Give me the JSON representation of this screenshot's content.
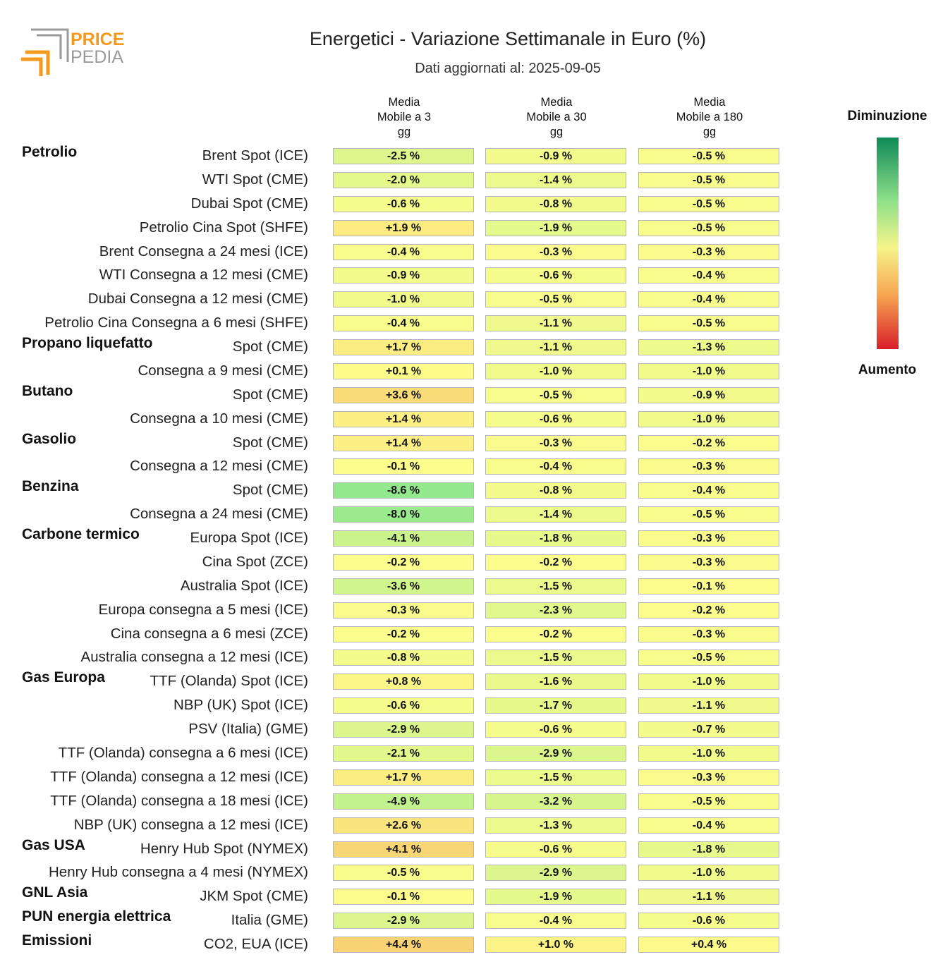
{
  "header": {
    "logo_text_top": "PRICE",
    "logo_text_bottom": "PEDIA",
    "title": "Energetici - Variazione Settimanale in Euro (%)",
    "subtitle": "Dati aggiornati al: 2025-09-05"
  },
  "columns": [
    "Media\nMobile a 3\ngg",
    "Media\nMobile a 30\ngg",
    "Media\nMobile a 180\ngg"
  ],
  "legend": {
    "top_label": "Diminuzione",
    "bottom_label": "Aumento"
  },
  "colors": {
    "strong_green": "#0f8a57",
    "green": "#8fe08a",
    "yellow": "#f5f58a",
    "orange": "#f7a752",
    "red": "#d81f2a"
  },
  "chart_data": {
    "type": "heatmap",
    "title": "Energetici - Variazione Settimanale in Euro (%)",
    "subtitle": "Dati aggiornati al: 2025-09-05",
    "columns": [
      "Media Mobile a 3 gg",
      "Media Mobile a 30 gg",
      "Media Mobile a 180 gg"
    ],
    "rows": [
      {
        "group": "Petrolio",
        "label": "Brent Spot (ICE)",
        "values": [
          -2.5,
          -0.9,
          -0.5
        ]
      },
      {
        "group": "",
        "label": "WTI Spot (CME)",
        "values": [
          -2.0,
          -1.4,
          -0.5
        ]
      },
      {
        "group": "",
        "label": "Dubai Spot (CME)",
        "values": [
          -0.6,
          -0.8,
          -0.5
        ]
      },
      {
        "group": "",
        "label": "Petrolio Cina Spot (SHFE)",
        "values": [
          1.9,
          -1.9,
          -0.5
        ]
      },
      {
        "group": "",
        "label": "Brent Consegna a 24 mesi (ICE)",
        "values": [
          -0.4,
          -0.3,
          -0.3
        ]
      },
      {
        "group": "",
        "label": "WTI Consegna a 12 mesi (CME)",
        "values": [
          -0.9,
          -0.6,
          -0.4
        ]
      },
      {
        "group": "",
        "label": "Dubai Consegna a 12 mesi (CME)",
        "values": [
          -1.0,
          -0.5,
          -0.4
        ]
      },
      {
        "group": "",
        "label": "Petrolio Cina Consegna a 6 mesi (SHFE)",
        "values": [
          -0.4,
          -1.1,
          -0.5
        ]
      },
      {
        "group": "Propano liquefatto",
        "label": "Spot (CME)",
        "values": [
          1.7,
          -1.1,
          -1.3
        ]
      },
      {
        "group": "",
        "label": "Consegna a 9 mesi (CME)",
        "values": [
          0.1,
          -1.0,
          -1.0
        ]
      },
      {
        "group": "Butano",
        "label": "Spot (CME)",
        "values": [
          3.6,
          -0.5,
          -0.9
        ]
      },
      {
        "group": "",
        "label": "Consegna a 10 mesi (CME)",
        "values": [
          1.4,
          -0.6,
          -1.0
        ]
      },
      {
        "group": "Gasolio",
        "label": "Spot (CME)",
        "values": [
          1.4,
          -0.3,
          -0.2
        ]
      },
      {
        "group": "",
        "label": "Consegna a 12 mesi (CME)",
        "values": [
          -0.1,
          -0.4,
          -0.3
        ]
      },
      {
        "group": "Benzina",
        "label": "Spot (CME)",
        "values": [
          -8.6,
          -0.8,
          -0.4
        ]
      },
      {
        "group": "",
        "label": "Consegna a 24 mesi (CME)",
        "values": [
          -8.0,
          -1.4,
          -0.5
        ]
      },
      {
        "group": "Carbone termico",
        "label": "Europa Spot (ICE)",
        "values": [
          -4.1,
          -1.8,
          -0.3
        ]
      },
      {
        "group": "",
        "label": "Cina Spot (ZCE)",
        "values": [
          -0.2,
          -0.2,
          -0.3
        ]
      },
      {
        "group": "",
        "label": "Australia Spot (ICE)",
        "values": [
          -3.6,
          -1.5,
          -0.1
        ]
      },
      {
        "group": "",
        "label": "Europa consegna a 5 mesi (ICE)",
        "values": [
          -0.3,
          -2.3,
          -0.2
        ]
      },
      {
        "group": "",
        "label": "Cina consegna a 6 mesi (ZCE)",
        "values": [
          -0.2,
          -0.2,
          -0.3
        ]
      },
      {
        "group": "",
        "label": "Australia consegna a 12 mesi (ICE)",
        "values": [
          -0.8,
          -1.5,
          -0.5
        ]
      },
      {
        "group": "Gas Europa",
        "label": "TTF (Olanda) Spot (ICE)",
        "values": [
          0.8,
          -1.6,
          -1.0
        ]
      },
      {
        "group": "",
        "label": "NBP (UK) Spot (ICE)",
        "values": [
          -0.6,
          -1.7,
          -1.1
        ]
      },
      {
        "group": "",
        "label": "PSV (Italia) (GME)",
        "values": [
          -2.9,
          -0.6,
          -0.7
        ]
      },
      {
        "group": "",
        "label": "TTF (Olanda) consegna a 6 mesi (ICE)",
        "values": [
          -2.1,
          -2.9,
          -1.0
        ]
      },
      {
        "group": "",
        "label": "TTF (Olanda) consegna a 12 mesi (ICE)",
        "values": [
          1.7,
          -1.5,
          -0.3
        ]
      },
      {
        "group": "",
        "label": "TTF (Olanda) consegna a 18 mesi (ICE)",
        "values": [
          -4.9,
          -3.2,
          -0.5
        ]
      },
      {
        "group": "",
        "label": "NBP (UK) consegna a 12 mesi (ICE)",
        "values": [
          2.6,
          -1.3,
          -0.4
        ]
      },
      {
        "group": "Gas USA",
        "label": "Henry Hub Spot (NYMEX)",
        "values": [
          4.1,
          -0.6,
          -1.8
        ]
      },
      {
        "group": "",
        "label": "Henry Hub consegna a 4 mesi (NYMEX)",
        "values": [
          -0.5,
          -2.9,
          -1.0
        ]
      },
      {
        "group": "GNL Asia",
        "label": "JKM Spot (CME)",
        "values": [
          -0.1,
          -1.9,
          -1.1
        ]
      },
      {
        "group": "PUN energia elettrica",
        "label": "Italia (GME)",
        "values": [
          -2.9,
          -0.4,
          -0.6
        ]
      },
      {
        "group": "Emissioni",
        "label": "CO2, EUA (ICE)",
        "values": [
          4.4,
          1.0,
          0.4
        ]
      }
    ],
    "unit": "%"
  }
}
